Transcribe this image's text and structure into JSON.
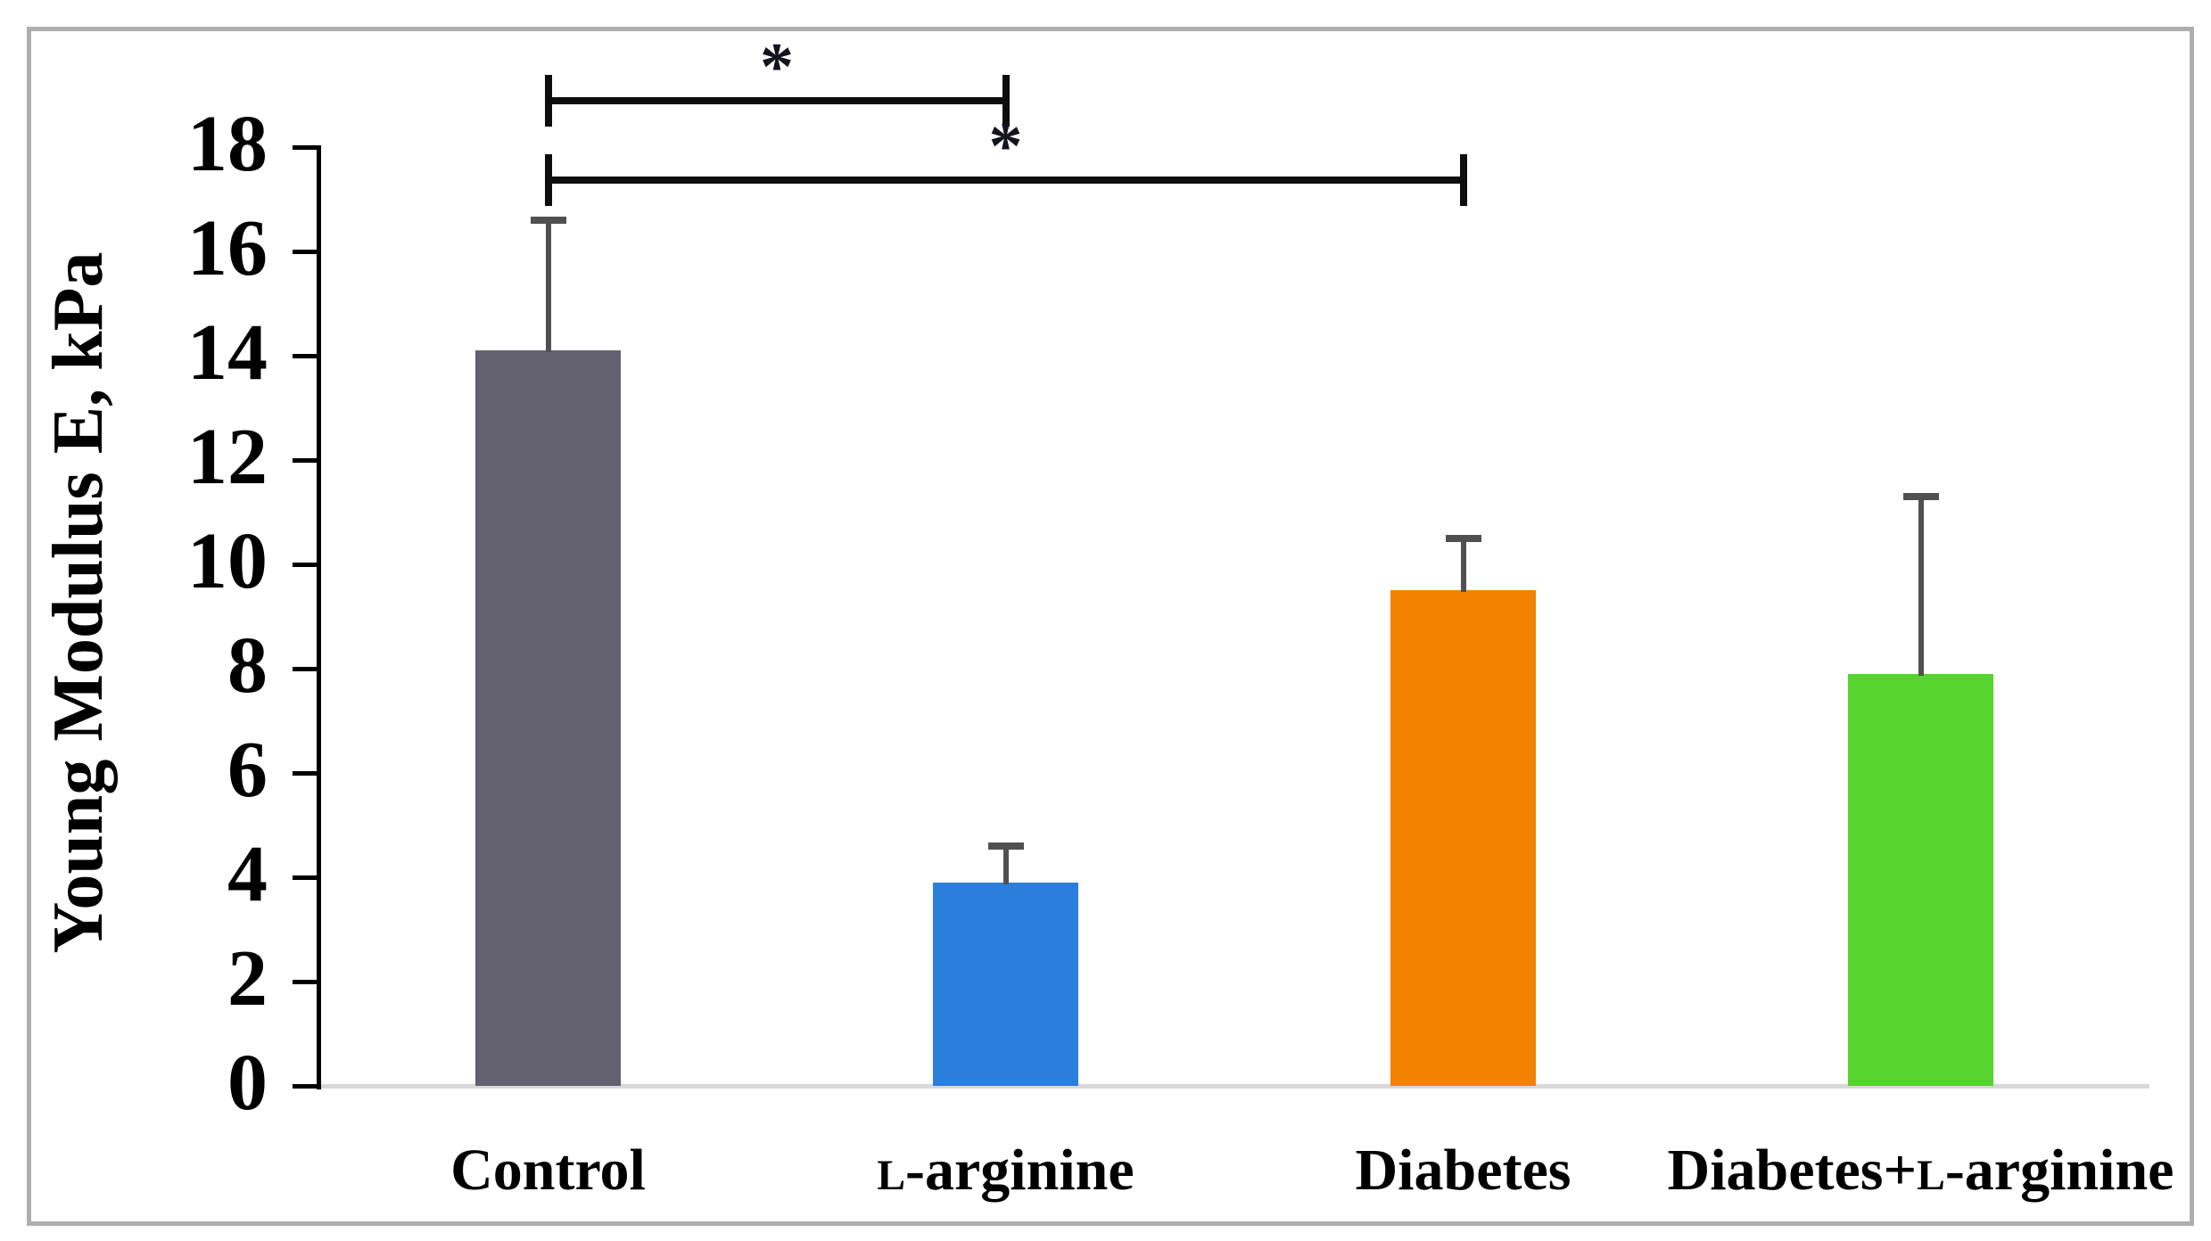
{
  "chart_data": {
    "type": "bar",
    "title": "",
    "ylabel": "Young Modulus E, kPa",
    "xlabel": "",
    "categories": [
      "Control",
      "ʟ-arginine",
      "Diabetes",
      "Diabetes+ʟ-arginine"
    ],
    "values": [
      14.1,
      3.9,
      9.5,
      7.9
    ],
    "error_sd": [
      2.5,
      0.7,
      1.0,
      3.4
    ],
    "error_tops": [
      16.6,
      4.6,
      10.5,
      11.3
    ],
    "bar_colors": [
      "#63606F",
      "#2A7EDC",
      "#F28200",
      "#55D42D"
    ],
    "ylim": [
      0,
      18
    ],
    "yticks": [
      0,
      2,
      4,
      6,
      8,
      10,
      12,
      14,
      16,
      18
    ],
    "grid": false,
    "legend": false,
    "significance_brackets": [
      {
        "from": "Control",
        "to": "ʟ-arginine",
        "label": "*"
      },
      {
        "from": "Control",
        "to": "Diabetes",
        "label": "*"
      }
    ],
    "colors": {
      "axis_line": "#000000",
      "baseline": "#D8D8D8",
      "error_bar": "#505050",
      "bracket": "#0d0d0d",
      "frame_border": "#AEAEAE",
      "text": "#000000"
    }
  }
}
